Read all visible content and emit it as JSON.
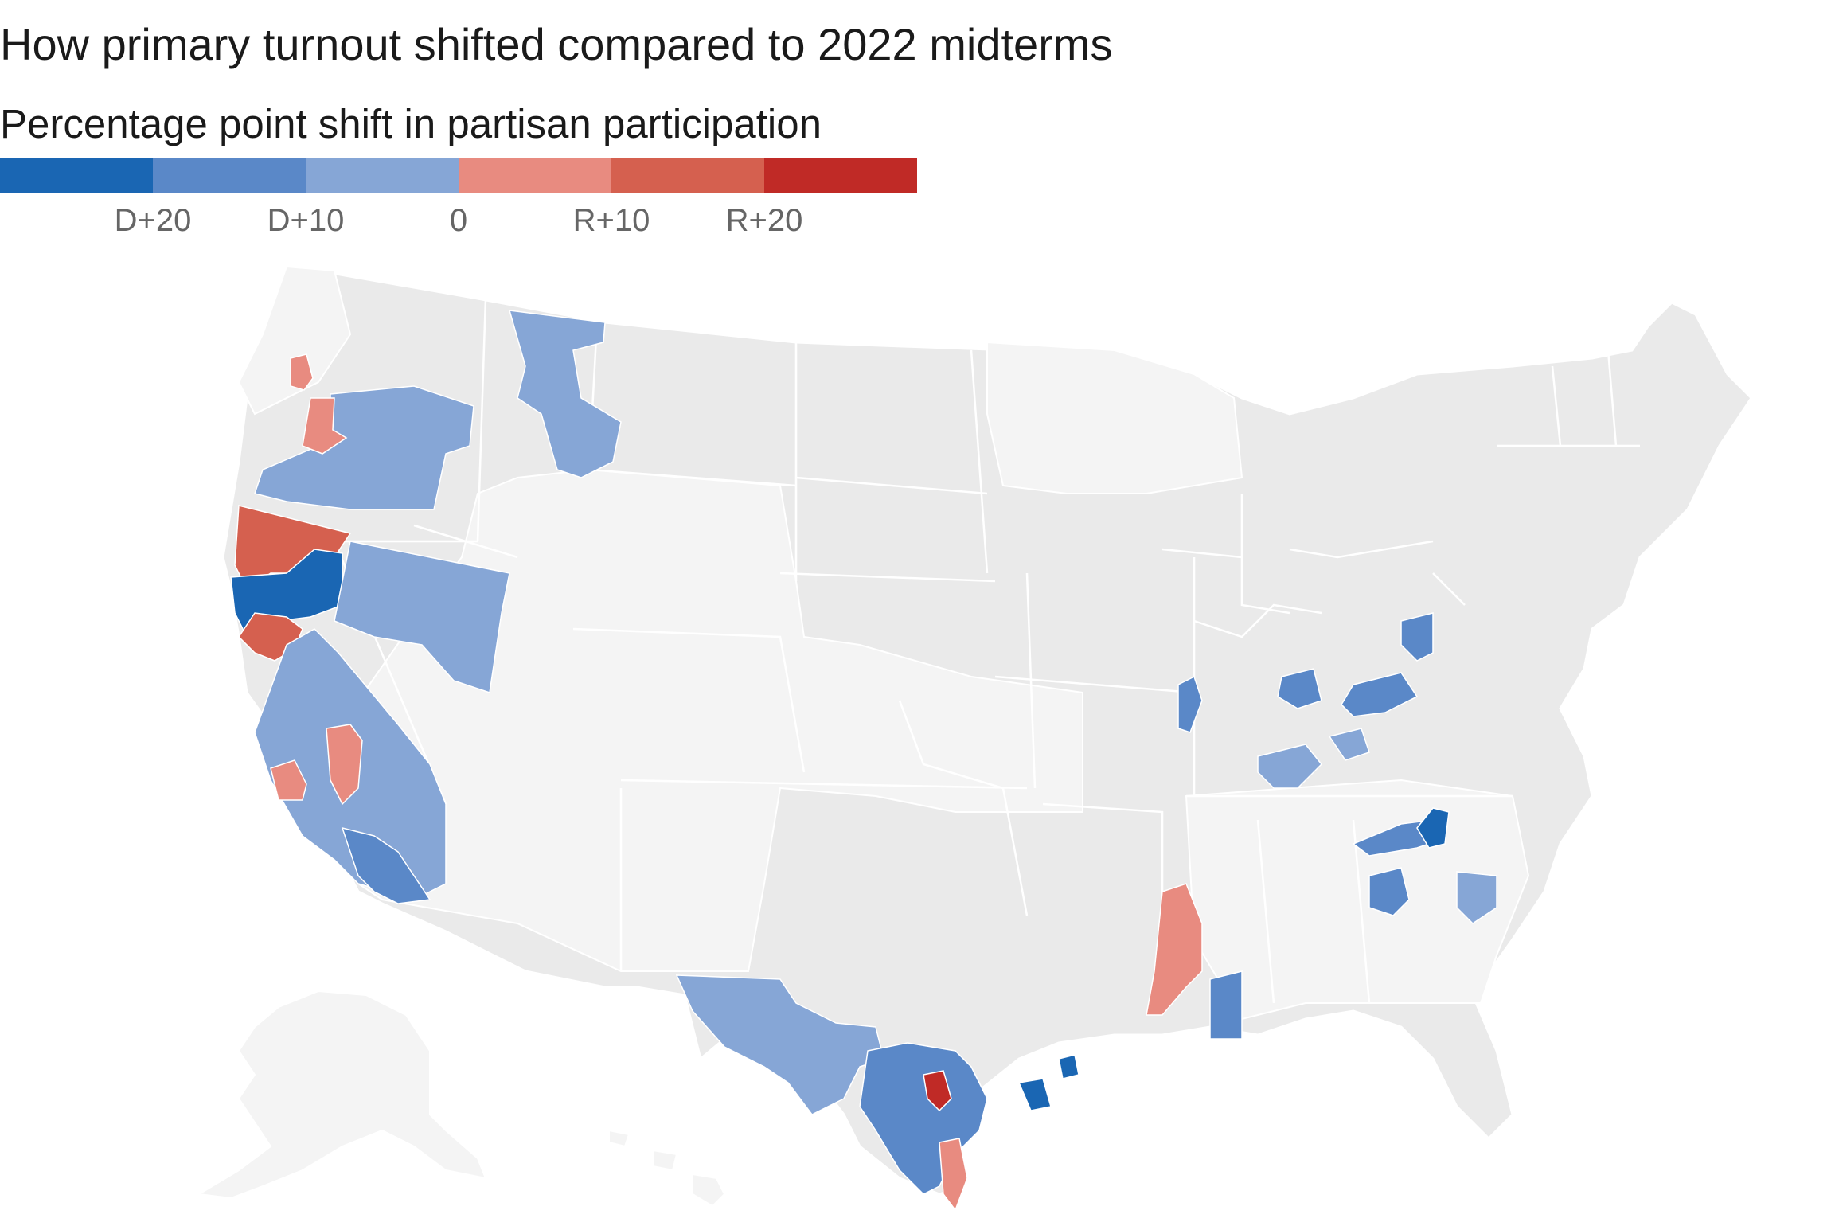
{
  "title": "How primary turnout shifted compared to 2022 midterms",
  "subtitle": "Percentage point shift in partisan participation",
  "legend": {
    "colors": [
      "#1a66b3",
      "#5a88c8",
      "#86a6d6",
      "#e88b80",
      "#d5604f",
      "#c02a26"
    ],
    "ticks": [
      "D+20",
      "D+10",
      "0",
      "R+10",
      "R+20"
    ]
  },
  "map_colors": {
    "land": "#eaeaea",
    "land_light": "#f4f4f4",
    "border": "#ffffff"
  },
  "regions": [
    {
      "name": "Oregon north coast",
      "color": "#e88b80"
    },
    {
      "name": "Oregon central",
      "color": "#86a6d6"
    },
    {
      "name": "Oregon central-west",
      "color": "#e88b80"
    },
    {
      "name": "Montana west",
      "color": "#86a6d6"
    },
    {
      "name": "Northern California north",
      "color": "#d5604f"
    },
    {
      "name": "Northern California",
      "color": "#1a66b3"
    },
    {
      "name": "Sacramento area",
      "color": "#d5604f"
    },
    {
      "name": "Nevada",
      "color": "#86a6d6"
    },
    {
      "name": "California central",
      "color": "#86a6d6"
    },
    {
      "name": "California central coast",
      "color": "#e88b80"
    },
    {
      "name": "Southern California",
      "color": "#5a88c8"
    },
    {
      "name": "Illinois",
      "color": "#5a88c8"
    },
    {
      "name": "Indiana",
      "color": "#5a88c8"
    },
    {
      "name": "Ohio",
      "color": "#5a88c8"
    },
    {
      "name": "Kentucky",
      "color": "#86a6d6"
    },
    {
      "name": "Virginia southwest",
      "color": "#5a88c8"
    },
    {
      "name": "Virginia central",
      "color": "#1a66b3"
    },
    {
      "name": "North Carolina",
      "color": "#5a88c8"
    },
    {
      "name": "South Carolina",
      "color": "#86a6d6"
    },
    {
      "name": "Mississippi",
      "color": "#e88b80"
    },
    {
      "name": "Alabama",
      "color": "#5a88c8"
    },
    {
      "name": "West Texas",
      "color": "#86a6d6"
    },
    {
      "name": "Central Texas",
      "color": "#5a88c8"
    },
    {
      "name": "Austin area",
      "color": "#c02a26"
    },
    {
      "name": "South Texas",
      "color": "#e88b80"
    },
    {
      "name": "Houston coast",
      "color": "#1a66b3"
    }
  ]
}
